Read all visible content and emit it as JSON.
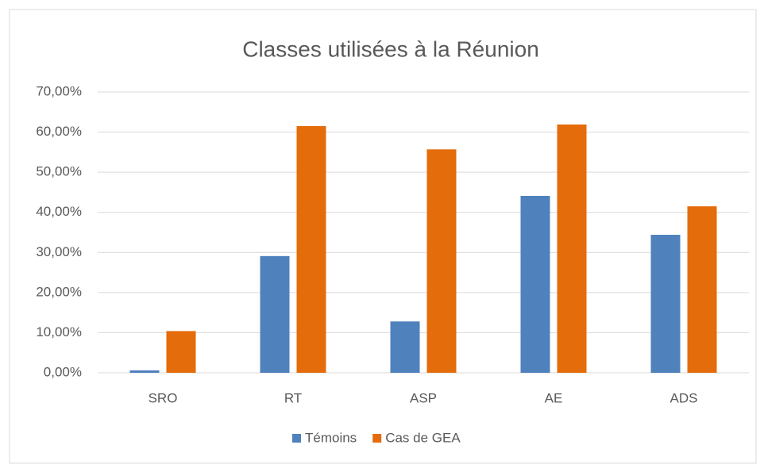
{
  "chart_data": {
    "type": "bar",
    "title": "Classes utilisées à la Réunion",
    "categories": [
      "SRO",
      "RT",
      "ASP",
      "AE",
      "ADS"
    ],
    "series": [
      {
        "name": "Témoins",
        "color": "#4f81bd",
        "values": [
          0.6,
          29.1,
          12.8,
          44.1,
          34.4
        ]
      },
      {
        "name": "Cas de GEA",
        "color": "#e46c0a",
        "values": [
          10.4,
          61.5,
          55.7,
          61.9,
          41.5
        ]
      }
    ],
    "ylim": [
      0,
      70
    ],
    "yticks": [
      {
        "value": 0,
        "label": "0,00%"
      },
      {
        "value": 10,
        "label": "10,00%"
      },
      {
        "value": 20,
        "label": "20,00%"
      },
      {
        "value": 30,
        "label": "30,00%"
      },
      {
        "value": 40,
        "label": "40,00%"
      },
      {
        "value": 50,
        "label": "50,00%"
      },
      {
        "value": 60,
        "label": "60,00%"
      },
      {
        "value": 70,
        "label": "70,00%"
      }
    ],
    "grid": true,
    "legend": "bottom"
  }
}
